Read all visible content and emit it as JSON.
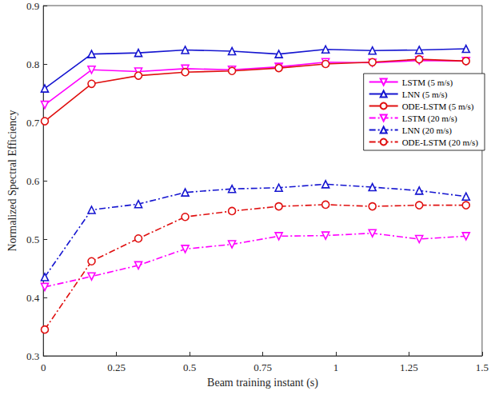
{
  "chart_data": {
    "type": "line",
    "x_label": "Beam training instant (s)",
    "y_label": "Normalized Spectral Efficiency",
    "x": [
      0.005,
      0.165,
      0.325,
      0.485,
      0.645,
      0.805,
      0.965,
      1.125,
      1.285,
      1.445
    ],
    "xlim": [
      0,
      1.5
    ],
    "xticks": [
      0,
      0.25,
      0.5,
      0.75,
      1,
      1.25,
      1.5
    ],
    "ylim": [
      0.3,
      0.9
    ],
    "yticks": [
      0.3,
      0.4,
      0.5,
      0.6,
      0.7,
      0.8,
      0.9
    ],
    "grid": false,
    "legend": "northeast",
    "series": [
      {
        "name": "LSTM (5 m/s)",
        "color": "#ff00ff",
        "marker": "triangle-down",
        "line_style": "solid",
        "values": [
          0.73,
          0.79,
          0.787,
          0.792,
          0.79,
          0.795,
          0.803,
          0.802,
          0.806,
          0.805
        ]
      },
      {
        "name": "LNN (5 m/s)",
        "color": "#1515d0",
        "marker": "triangle",
        "line_style": "solid",
        "values": [
          0.758,
          0.817,
          0.819,
          0.824,
          0.822,
          0.817,
          0.825,
          0.823,
          0.824,
          0.826
        ]
      },
      {
        "name": "ODE-LSTM (5 m/s)",
        "color": "#e01010",
        "marker": "circle",
        "line_style": "solid",
        "values": [
          0.702,
          0.766,
          0.78,
          0.786,
          0.788,
          0.793,
          0.8,
          0.803,
          0.808,
          0.805
        ]
      },
      {
        "name": "LSTM (20 m/s)",
        "color": "#ff00ff",
        "marker": "triangle-down",
        "line_style": "dashdot",
        "values": [
          0.418,
          0.436,
          0.455,
          0.483,
          0.491,
          0.505,
          0.506,
          0.51,
          0.5,
          0.505
        ]
      },
      {
        "name": "LNN (20 m/s)",
        "color": "#1515d0",
        "marker": "triangle",
        "line_style": "dashdot",
        "values": [
          0.435,
          0.55,
          0.56,
          0.58,
          0.586,
          0.588,
          0.594,
          0.589,
          0.583,
          0.573
        ]
      },
      {
        "name": "ODE-LSTM (20 m/s)",
        "color": "#e01010",
        "marker": "circle",
        "line_style": "dashdot",
        "values": [
          0.345,
          0.462,
          0.501,
          0.538,
          0.548,
          0.556,
          0.559,
          0.556,
          0.558,
          0.558
        ]
      }
    ]
  }
}
